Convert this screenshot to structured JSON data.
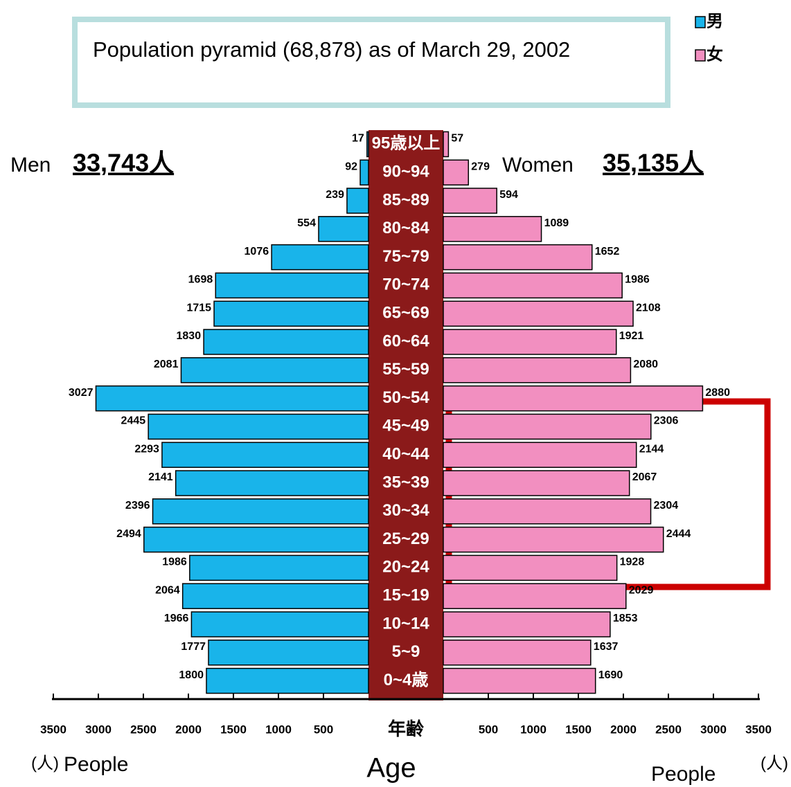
{
  "chart_data": {
    "type": "pyramid",
    "title": "Population pyramid (68,878) as of March 29, 2002",
    "left_label": "Men",
    "left_total": "33,743人",
    "right_label": "Women",
    "right_total": "35,135人",
    "center_axis_label": "年齢",
    "center_axis_caption": "Age",
    "left_unit": "(人)",
    "left_unit_caption": "People",
    "right_unit": "(人)",
    "right_unit_caption": "People",
    "categories": [
      "95歳以上",
      "90~94",
      "85~89",
      "80~84",
      "75~79",
      "70~74",
      "65~69",
      "60~64",
      "55~59",
      "50~54",
      "45~49",
      "40~44",
      "35~39",
      "30~34",
      "25~29",
      "20~24",
      "15~19",
      "10~14",
      "5~9",
      "0~4歳"
    ],
    "series": [
      {
        "name": "男",
        "color": "#19b4ea",
        "values": [
          17,
          92,
          239,
          554,
          1076,
          1698,
          1715,
          1830,
          2081,
          3027,
          2445,
          2293,
          2141,
          2396,
          2494,
          1986,
          2064,
          1966,
          1777,
          1800
        ]
      },
      {
        "name": "女",
        "color": "#f28fc0",
        "values": [
          57,
          279,
          594,
          1089,
          1652,
          1986,
          2108,
          1921,
          2080,
          2880,
          2306,
          2144,
          2067,
          2304,
          2444,
          1928,
          2029,
          1853,
          1637,
          1690
        ]
      }
    ],
    "xlim": [
      0,
      3500
    ],
    "xticks": [
      500,
      1000,
      1500,
      2000,
      2500,
      3000,
      3500
    ]
  }
}
